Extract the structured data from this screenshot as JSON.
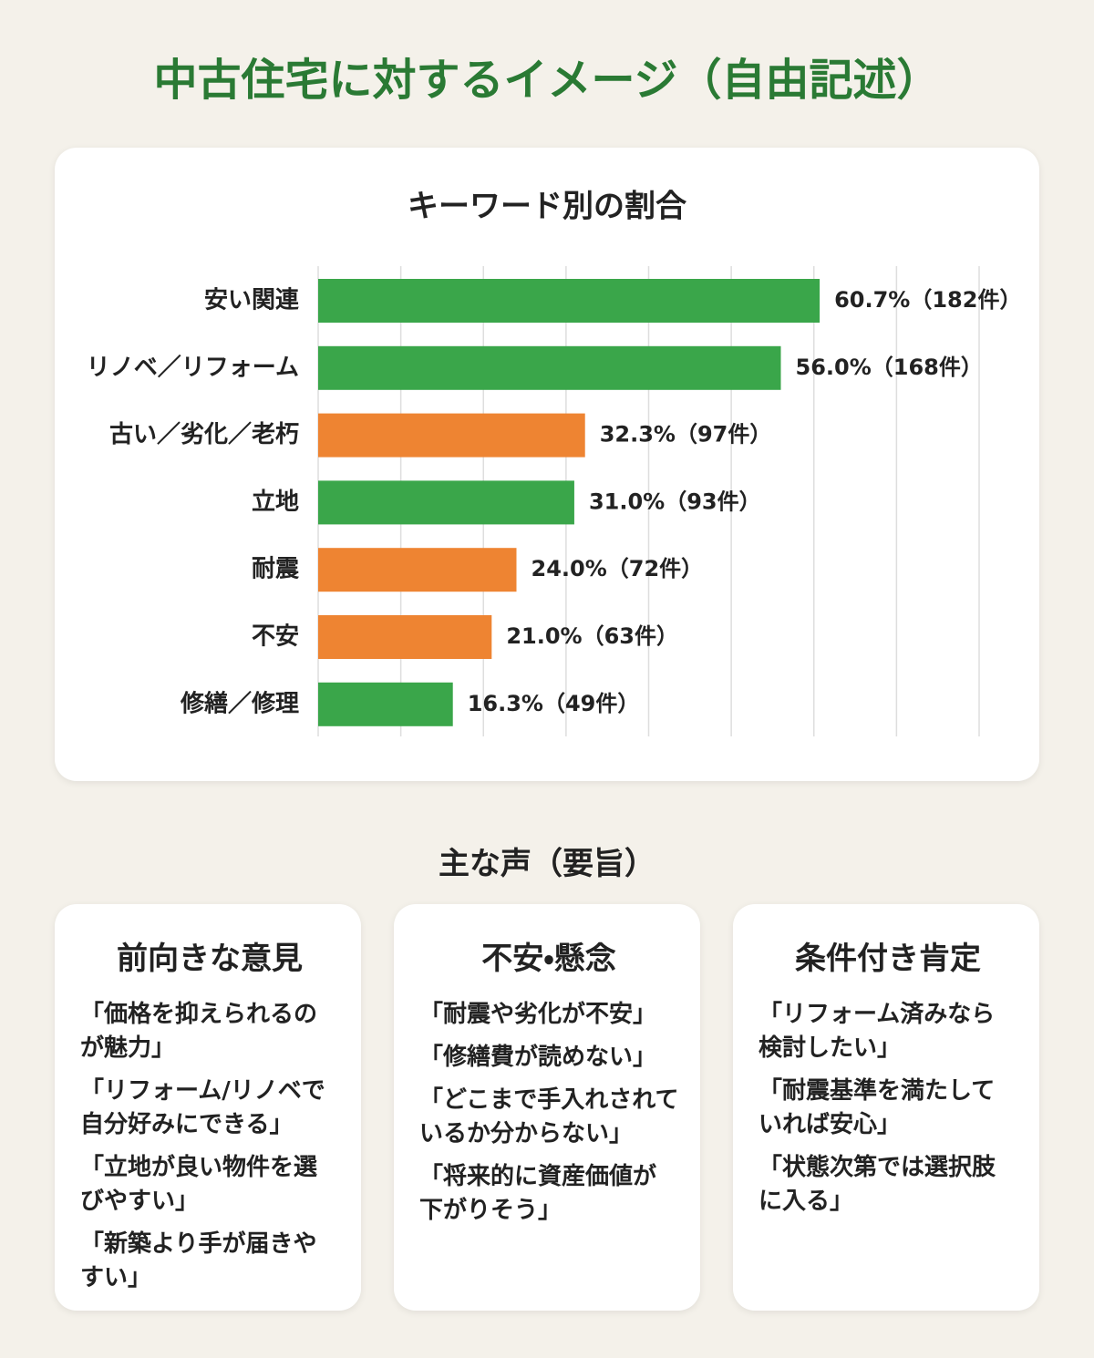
{
  "title": "中古住宅に対するイメージ（自由記述）",
  "chart_data": {
    "type": "barh",
    "title": "キーワード別の割合",
    "categories": [
      "安い関連",
      "リノベ／リフォーム",
      "古い／劣化／老朽",
      "立地",
      "耐震",
      "不安",
      "修繕／修理"
    ],
    "values": [
      60.7,
      56.0,
      32.3,
      31.0,
      24.0,
      21.0,
      16.3
    ],
    "value_labels": [
      "60.7%（182件）",
      "56.0%（168件）",
      "32.3%（97件）",
      "31.0%（93件）",
      "24.0%（72件）",
      "21.0%（63件）",
      "16.3%（49件）"
    ],
    "colors": [
      "#3aa64a",
      "#3aa64a",
      "#ee8432",
      "#3aa64a",
      "#ee8432",
      "#ee8432",
      "#3aa64a"
    ],
    "xlim": [
      0,
      80
    ],
    "xticks": [
      0,
      10,
      20,
      30,
      40,
      50,
      60,
      70,
      80
    ],
    "grid": true
  },
  "voices": {
    "title": "主な声（要旨）",
    "cards": [
      {
        "title": "前向きな意見",
        "quotes": [
          "「価格を抑えられるのが魅力」",
          "「リフォーム/リノベで自分好みにできる」",
          "「立地が良い物件を選びやすい」",
          "「新築より手が届きやすい」"
        ]
      },
      {
        "title": "不安・懸念",
        "quotes": [
          "「耐震や劣化が不安」",
          "「修繕費が読めない」",
          "「どこまで手入れされているか分からない」",
          "「将来的に資産価値が下がりそう」"
        ]
      },
      {
        "title": "条件付き肯定",
        "quotes": [
          "「リフォーム済みなら検討したい」",
          "「耐震基準を満たしていれば安心」",
          "「状態次第では選択肢に入る」"
        ]
      }
    ]
  }
}
